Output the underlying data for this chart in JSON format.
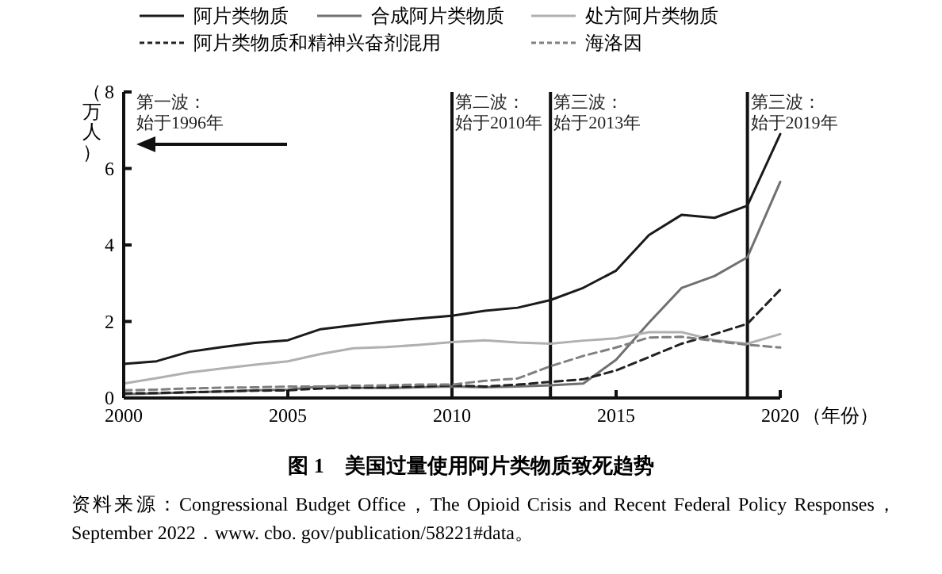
{
  "chart_data": {
    "type": "line",
    "title": "图 1　美国过量使用阿片类物质致死趋势",
    "ylabel": "（万人）",
    "xlabel": "（年份）",
    "x": [
      2000,
      2001,
      2002,
      2003,
      2004,
      2005,
      2006,
      2007,
      2008,
      2009,
      2010,
      2011,
      2012,
      2013,
      2014,
      2015,
      2016,
      2017,
      2018,
      2019,
      2020
    ],
    "series": [
      {
        "name": "阿片类物质",
        "color": "#1a1a1a",
        "line_style": "solid",
        "values": [
          0.89,
          0.96,
          1.21,
          1.33,
          1.44,
          1.51,
          1.8,
          1.9,
          2.0,
          2.08,
          2.15,
          2.28,
          2.36,
          2.56,
          2.88,
          3.33,
          4.26,
          4.79,
          4.71,
          5.03,
          6.9
        ]
      },
      {
        "name": "合成阿片类物质",
        "color": "#707070",
        "line_style": "solid",
        "values": [
          0.1,
          0.12,
          0.15,
          0.17,
          0.2,
          0.22,
          0.3,
          0.27,
          0.26,
          0.28,
          0.3,
          0.28,
          0.3,
          0.33,
          0.38,
          1.0,
          1.97,
          2.88,
          3.19,
          3.68,
          5.65
        ]
      },
      {
        "name": "处方阿片类物质",
        "color": "#b0b0b0",
        "line_style": "solid",
        "values": [
          0.38,
          0.52,
          0.67,
          0.77,
          0.87,
          0.96,
          1.15,
          1.3,
          1.33,
          1.39,
          1.46,
          1.51,
          1.45,
          1.42,
          1.5,
          1.56,
          1.72,
          1.72,
          1.51,
          1.42,
          1.67
        ]
      },
      {
        "name": "阿片类物质和精神兴奋剂混用",
        "color": "#222222",
        "line_style": "dashed",
        "values": [
          0.12,
          0.13,
          0.15,
          0.17,
          0.19,
          0.2,
          0.25,
          0.27,
          0.28,
          0.3,
          0.33,
          0.3,
          0.35,
          0.42,
          0.49,
          0.72,
          1.07,
          1.42,
          1.67,
          1.94,
          2.83
        ]
      },
      {
        "name": "海洛因",
        "color": "#808080",
        "line_style": "dashed",
        "values": [
          0.2,
          0.22,
          0.25,
          0.27,
          0.28,
          0.3,
          0.3,
          0.32,
          0.33,
          0.35,
          0.35,
          0.45,
          0.51,
          0.83,
          1.1,
          1.32,
          1.58,
          1.6,
          1.49,
          1.39,
          1.32
        ]
      }
    ],
    "xlim": [
      2000,
      2020
    ],
    "xticks": [
      2000,
      2005,
      2010,
      2015,
      2020
    ],
    "ylim": [
      0,
      8
    ],
    "yticks": [
      0,
      2,
      4,
      6,
      8
    ],
    "grid": false,
    "legend": "top",
    "ref_lines": [
      {
        "axis": "x",
        "value": 2010,
        "label": "第二波：始于2010年",
        "color": "#111111"
      },
      {
        "axis": "x",
        "value": 2013,
        "label": "第三波：始于2013年",
        "color": "#111111"
      },
      {
        "axis": "x",
        "value": 2019,
        "label": "第三波：始于2019年",
        "color": "#111111"
      }
    ],
    "annotations": [
      "第一波：始于1996年",
      "资料来源：Congressional Budget Office，The Opioid Crisis and Recent Federal Policy Responses，September 2022．www. cbo. gov/publication/58221#data。"
    ]
  }
}
